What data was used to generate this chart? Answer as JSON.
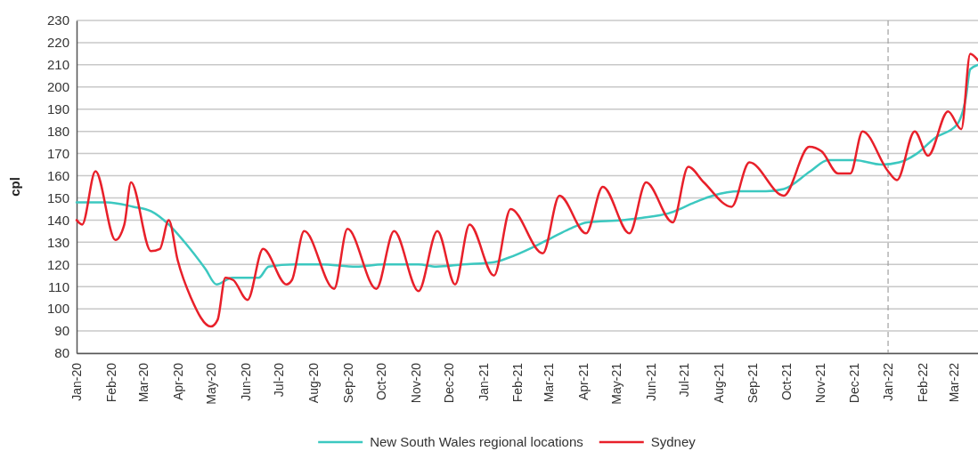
{
  "chart_data": {
    "type": "line",
    "ylabel": "cpl",
    "ylim": [
      80,
      230
    ],
    "yticks": [
      80,
      90,
      100,
      110,
      120,
      130,
      140,
      150,
      160,
      170,
      180,
      190,
      200,
      210,
      220,
      230
    ],
    "xlim": [
      "2020-01-01",
      "2022-03-23"
    ],
    "xticks": [
      {
        "value": "2020-01-01",
        "label": "Jan-20"
      },
      {
        "value": "2020-02-01",
        "label": "Feb-20"
      },
      {
        "value": "2020-03-01",
        "label": "Mar-20"
      },
      {
        "value": "2020-04-01",
        "label": "Apr-20"
      },
      {
        "value": "2020-05-01",
        "label": "May-20"
      },
      {
        "value": "2020-06-01",
        "label": "Jun-20"
      },
      {
        "value": "2020-07-01",
        "label": "Jul-20"
      },
      {
        "value": "2020-08-01",
        "label": "Aug-20"
      },
      {
        "value": "2020-09-01",
        "label": "Sep-20"
      },
      {
        "value": "2020-10-01",
        "label": "Oct-20"
      },
      {
        "value": "2020-11-01",
        "label": "Nov-20"
      },
      {
        "value": "2020-12-01",
        "label": "Dec-20"
      },
      {
        "value": "2021-01-01",
        "label": "Jan-21"
      },
      {
        "value": "2021-02-01",
        "label": "Feb-21"
      },
      {
        "value": "2021-03-01",
        "label": "Mar-21"
      },
      {
        "value": "2021-04-01",
        "label": "Apr-21"
      },
      {
        "value": "2021-05-01",
        "label": "May-21"
      },
      {
        "value": "2021-06-01",
        "label": "Jun-21"
      },
      {
        "value": "2021-07-01",
        "label": "Jul-21"
      },
      {
        "value": "2021-08-01",
        "label": "Aug-21"
      },
      {
        "value": "2021-09-01",
        "label": "Sep-21"
      },
      {
        "value": "2021-10-01",
        "label": "Oct-21"
      },
      {
        "value": "2021-11-01",
        "label": "Nov-21"
      },
      {
        "value": "2021-12-01",
        "label": "Dec-21"
      },
      {
        "value": "2022-01-01",
        "label": "Jan-22"
      },
      {
        "value": "2022-02-01",
        "label": "Feb-22"
      },
      {
        "value": "2022-03-01",
        "label": "Mar-22"
      }
    ],
    "grid": "y",
    "legend": "bottom",
    "line_style": "solid",
    "ref_lines": [
      {
        "axis": "x",
        "value": "2022-01-01",
        "color": "#a0a0a0",
        "line_style": "dashed"
      }
    ],
    "series": [
      {
        "name": "New South Wales regional locations",
        "color": "#3cc8c0",
        "x": [
          "2020-01-01",
          "2020-01-20",
          "2020-01-28",
          "2020-02-21",
          "2020-03-08",
          "2020-03-24",
          "2020-04-09",
          "2020-04-26",
          "2020-05-06",
          "2020-05-20",
          "2020-06-13",
          "2020-06-22",
          "2020-07-15",
          "2020-08-08",
          "2020-09-09",
          "2020-10-03",
          "2020-11-04",
          "2020-11-20",
          "2020-12-14",
          "2021-01-11",
          "2021-01-24",
          "2021-02-16",
          "2021-03-04",
          "2021-03-20",
          "2021-04-05",
          "2021-05-07",
          "2021-05-24",
          "2021-06-17",
          "2021-07-11",
          "2021-07-27",
          "2021-08-20",
          "2021-09-13",
          "2021-09-29",
          "2021-10-23",
          "2021-11-08",
          "2021-12-02",
          "2021-12-26",
          "2022-01-11",
          "2022-01-27",
          "2022-02-12",
          "2022-03-04",
          "2022-03-12",
          "2022-03-16",
          "2022-03-23"
        ],
        "values": [
          148,
          148,
          148,
          146,
          144,
          138,
          129,
          118,
          111,
          114,
          114,
          119,
          120,
          120,
          119,
          120,
          120,
          119,
          120,
          121,
          123,
          128,
          132,
          136,
          139,
          140,
          141,
          143,
          148,
          151,
          153,
          153,
          154,
          162,
          167,
          167,
          165,
          166,
          170,
          177,
          183,
          195,
          208,
          210
        ]
      },
      {
        "name": "Sydney",
        "color": "#e8202a",
        "x": [
          "2020-01-01",
          "2020-01-06",
          "2020-01-18",
          "2020-02-05",
          "2020-02-13",
          "2020-02-19",
          "2020-03-08",
          "2020-03-16",
          "2020-03-24",
          "2020-04-01",
          "2020-04-13",
          "2020-05-01",
          "2020-05-07",
          "2020-05-14",
          "2020-05-21",
          "2020-06-03",
          "2020-06-17",
          "2020-07-08",
          "2020-07-13",
          "2020-07-24",
          "2020-08-20",
          "2020-09-01",
          "2020-09-27",
          "2020-10-13",
          "2020-11-04",
          "2020-11-21",
          "2020-12-07",
          "2020-12-20",
          "2021-01-11",
          "2021-01-26",
          "2021-02-24",
          "2021-03-11",
          "2021-04-04",
          "2021-04-19",
          "2021-05-13",
          "2021-05-28",
          "2021-06-21",
          "2021-07-05",
          "2021-07-19",
          "2021-08-13",
          "2021-08-29",
          "2021-09-29",
          "2021-10-22",
          "2021-11-02",
          "2021-11-17",
          "2021-11-28",
          "2021-12-09",
          "2022-01-01",
          "2022-01-09",
          "2022-01-25",
          "2022-02-06",
          "2022-02-24",
          "2022-03-08",
          "2022-03-16",
          "2022-03-23"
        ],
        "values": [
          140,
          138,
          162,
          131,
          138,
          157,
          126,
          127,
          140,
          122,
          105,
          92,
          95,
          114,
          113,
          104,
          127,
          111,
          113,
          135,
          109,
          136,
          109,
          135,
          108,
          135,
          111,
          138,
          115,
          145,
          125,
          151,
          134,
          155,
          134,
          157,
          139,
          164,
          157,
          146,
          166,
          151,
          173,
          171,
          161,
          161,
          180,
          162,
          158,
          180,
          169,
          189,
          181,
          215,
          212
        ]
      }
    ]
  }
}
